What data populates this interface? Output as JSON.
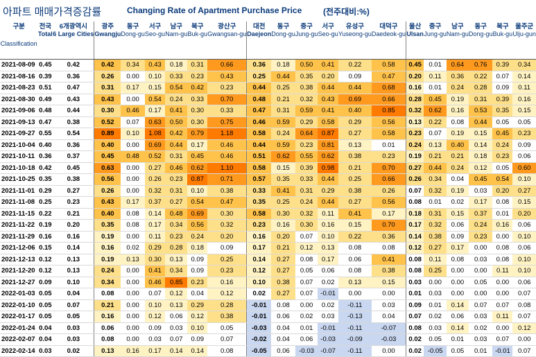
{
  "title_korean": "아파트 매매가격증감률",
  "title_english": "Changing Rate of Apartment Purchase Price",
  "unit_note": "(전주대비:%)",
  "colors": {
    "title": "#0b3a7a",
    "heat_1": "#fff3c4",
    "heat_2": "#ffe08a",
    "heat_3": "#ffc24a",
    "heat_4": "#ff9a1f",
    "heat_5": "#ff7a00",
    "negative": "#c9d7f0"
  },
  "columns": [
    {
      "ko": "구분",
      "en": "Classification"
    },
    {
      "ko": "전국",
      "en": "Total"
    },
    {
      "ko": "6개광역시",
      "en": "6 Large Cities"
    },
    {
      "ko": "광주",
      "en": "Gwangju"
    },
    {
      "ko": "동구",
      "en": "Dong-gu"
    },
    {
      "ko": "서구",
      "en": "Seo-gu"
    },
    {
      "ko": "남구",
      "en": "Nam-gu"
    },
    {
      "ko": "북구",
      "en": "Buk-gu"
    },
    {
      "ko": "광산구",
      "en": "Gwangsan-gu"
    },
    {
      "ko": "대전",
      "en": "Daejeon"
    },
    {
      "ko": "동구",
      "en": "Dong-gu"
    },
    {
      "ko": "중구",
      "en": "Jung-gu"
    },
    {
      "ko": "서구",
      "en": "Seo-gu"
    },
    {
      "ko": "유성구",
      "en": "Yuseong-gu"
    },
    {
      "ko": "대덕구",
      "en": "Daedeok-gu"
    },
    {
      "ko": "울산",
      "en": "Ulsan"
    },
    {
      "ko": "중구",
      "en": "Jung-gu"
    },
    {
      "ko": "남구",
      "en": "Nam-gu"
    },
    {
      "ko": "동구",
      "en": "Dong-gu"
    },
    {
      "ko": "북구",
      "en": "Buk-gu"
    },
    {
      "ko": "울주군",
      "en": "Ulju-gun"
    }
  ],
  "rows": [
    {
      "date": "2021-08-09",
      "values": [
        "0.45",
        "0.42",
        "0.42",
        "0.34",
        "0.43",
        "0.18",
        "0.31",
        "0.66",
        "0.36",
        "0.18",
        "0.50",
        "0.41",
        "0.22",
        "0.58",
        "0.45",
        "0.01",
        "0.64",
        "0.76",
        "0.39",
        "0.34"
      ]
    },
    {
      "date": "2021-08-16",
      "values": [
        "0.39",
        "0.36",
        "0.26",
        "0.00",
        "0.10",
        "0.33",
        "0.23",
        "0.43",
        "0.25",
        "0.44",
        "0.35",
        "0.20",
        "0.09",
        "0.47",
        "0.20",
        "0.11",
        "0.36",
        "0.22",
        "0.07",
        "0.14"
      ]
    },
    {
      "date": "2021-08-23",
      "values": [
        "0.51",
        "0.47",
        "0.31",
        "0.17",
        "0.15",
        "0.54",
        "0.42",
        "0.23",
        "0.44",
        "0.25",
        "0.38",
        "0.44",
        "0.44",
        "0.68",
        "0.16",
        "0.01",
        "0.24",
        "0.28",
        "0.09",
        "0.11"
      ]
    },
    {
      "date": "2021-08-30",
      "values": [
        "0.49",
        "0.43",
        "0.43",
        "0.00",
        "0.54",
        "0.24",
        "0.33",
        "0.70",
        "0.48",
        "0.21",
        "0.32",
        "0.43",
        "0.69",
        "0.66",
        "0.28",
        "0.45",
        "0.19",
        "0.31",
        "0.39",
        "0.16"
      ]
    },
    {
      "date": "2021-09-06",
      "values": [
        "0.48",
        "0.44",
        "0.30",
        "0.46",
        "0.17",
        "0.41",
        "0.30",
        "0.33",
        "0.47",
        "0.31",
        "0.59",
        "0.41",
        "0.40",
        "0.85",
        "0.32",
        "0.62",
        "0.16",
        "0.53",
        "0.35",
        "0.15"
      ]
    },
    {
      "date": "2021-09-13",
      "values": [
        "0.47",
        "0.38",
        "0.52",
        "0.07",
        "0.63",
        "0.50",
        "0.30",
        "0.75",
        "0.46",
        "0.59",
        "0.29",
        "0.58",
        "0.29",
        "0.56",
        "0.13",
        "0.22",
        "0.08",
        "0.44",
        "0.05",
        "0.05"
      ]
    },
    {
      "date": "2021-09-27",
      "values": [
        "0.55",
        "0.54",
        "0.89",
        "0.10",
        "1.08",
        "0.42",
        "0.79",
        "1.18",
        "0.58",
        "0.24",
        "0.64",
        "0.87",
        "0.27",
        "0.58",
        "0.23",
        "0.07",
        "0.19",
        "0.15",
        "0.45",
        "0.23"
      ]
    },
    {
      "date": "2021-10-04",
      "values": [
        "0.40",
        "0.36",
        "0.40",
        "0.00",
        "0.69",
        "0.44",
        "0.17",
        "0.46",
        "0.44",
        "0.59",
        "0.23",
        "0.81",
        "0.13",
        "0.01",
        "0.24",
        "0.13",
        "0.40",
        "0.14",
        "0.24",
        "0.09"
      ]
    },
    {
      "date": "2021-10-11",
      "values": [
        "0.36",
        "0.37",
        "0.45",
        "0.48",
        "0.52",
        "0.31",
        "0.45",
        "0.46",
        "0.51",
        "0.62",
        "0.55",
        "0.62",
        "0.38",
        "0.23",
        "0.19",
        "0.21",
        "0.21",
        "0.18",
        "0.23",
        "0.06"
      ]
    },
    {
      "date": "2021-10-18",
      "values": [
        "0.42",
        "0.45",
        "0.63",
        "0.00",
        "0.27",
        "0.46",
        "0.62",
        "1.10",
        "0.58",
        "0.15",
        "0.39",
        "0.98",
        "0.21",
        "0.70",
        "0.27",
        "0.44",
        "0.24",
        "0.12",
        "0.05",
        "0.60"
      ]
    },
    {
      "date": "2021-10-25",
      "values": [
        "0.35",
        "0.38",
        "0.56",
        "0.00",
        "0.26",
        "0.23",
        "0.87",
        "0.71",
        "0.57",
        "0.35",
        "0.33",
        "0.44",
        "0.25",
        "0.66",
        "0.26",
        "0.34",
        "0.04",
        "0.45",
        "0.54",
        "0.10"
      ]
    },
    {
      "date": "2021-11-01",
      "values": [
        "0.29",
        "0.27",
        "0.26",
        "0.00",
        "0.32",
        "0.31",
        "0.10",
        "0.38",
        "0.33",
        "0.41",
        "0.31",
        "0.29",
        "0.38",
        "0.26",
        "0.07",
        "0.32",
        "0.19",
        "0.03",
        "0.20",
        "0.27"
      ]
    },
    {
      "date": "2021-11-08",
      "values": [
        "0.25",
        "0.23",
        "0.43",
        "0.17",
        "0.37",
        "0.27",
        "0.54",
        "0.47",
        "0.35",
        "0.25",
        "0.24",
        "0.44",
        "0.27",
        "0.56",
        "0.08",
        "0.01",
        "0.02",
        "0.17",
        "0.08",
        "0.15"
      ]
    },
    {
      "date": "2021-11-15",
      "values": [
        "0.22",
        "0.21",
        "0.40",
        "0.08",
        "0.14",
        "0.48",
        "0.69",
        "0.30",
        "0.58",
        "0.30",
        "0.32",
        "0.11",
        "0.41",
        "0.17",
        "0.18",
        "0.31",
        "0.15",
        "0.37",
        "0.01",
        "0.20"
      ]
    },
    {
      "date": "2021-11-22",
      "values": [
        "0.19",
        "0.20",
        "0.35",
        "0.08",
        "0.17",
        "0.34",
        "0.56",
        "0.32",
        "0.23",
        "0.16",
        "0.30",
        "0.16",
        "0.15",
        "0.70",
        "0.17",
        "0.32",
        "0.06",
        "0.24",
        "0.16",
        "0.06"
      ]
    },
    {
      "date": "2021-11-29",
      "values": [
        "0.16",
        "0.16",
        "0.19",
        "0.00",
        "0.11",
        "0.23",
        "0.24",
        "0.20",
        "0.16",
        "0.20",
        "0.07",
        "0.10",
        "0.22",
        "0.36",
        "0.14",
        "0.38",
        "0.09",
        "0.23",
        "0.00",
        "0.10"
      ]
    },
    {
      "date": "2021-12-06",
      "values": [
        "0.15",
        "0.14",
        "0.16",
        "0.02",
        "0.29",
        "0.28",
        "0.18",
        "0.09",
        "0.17",
        "0.21",
        "0.12",
        "0.13",
        "0.08",
        "0.08",
        "0.12",
        "0.27",
        "0.17",
        "0.00",
        "0.08",
        "0.06"
      ]
    },
    {
      "date": "2021-12-13",
      "values": [
        "0.12",
        "0.13",
        "0.19",
        "0.13",
        "0.30",
        "0.13",
        "0.09",
        "0.25",
        "0.14",
        "0.27",
        "0.08",
        "0.17",
        "0.06",
        "0.41",
        "0.08",
        "0.11",
        "0.08",
        "0.03",
        "0.08",
        "0.10"
      ]
    },
    {
      "date": "2021-12-20",
      "values": [
        "0.12",
        "0.13",
        "0.24",
        "0.00",
        "0.41",
        "0.34",
        "0.09",
        "0.23",
        "0.12",
        "0.27",
        "0.05",
        "0.06",
        "0.08",
        "0.38",
        "0.08",
        "0.25",
        "0.00",
        "0.00",
        "0.11",
        "0.10"
      ]
    },
    {
      "date": "2021-12-27",
      "values": [
        "0.09",
        "0.10",
        "0.34",
        "0.00",
        "0.46",
        "0.85",
        "0.23",
        "0.16",
        "0.10",
        "0.38",
        "0.07",
        "0.02",
        "0.13",
        "0.15",
        "0.03",
        "0.00",
        "0.00",
        "0.05",
        "0.00",
        "0.06"
      ]
    },
    {
      "date": "2022-01-03",
      "values": [
        "0.05",
        "0.04",
        "0.08",
        "0.00",
        "0.07",
        "0.12",
        "0.04",
        "0.12",
        "0.02",
        "0.27",
        "0.07",
        "-0.01",
        "0.00",
        "0.00",
        "0.01",
        "0.03",
        "0.00",
        "0.00",
        "0.00",
        "0.07"
      ]
    },
    {
      "date": "2022-01-10",
      "values": [
        "0.05",
        "0.07",
        "0.21",
        "0.00",
        "0.10",
        "0.13",
        "0.29",
        "0.28",
        "-0.01",
        "0.08",
        "0.00",
        "0.02",
        "-0.11",
        "0.03",
        "0.09",
        "0.01",
        "0.14",
        "0.07",
        "0.07",
        "0.08"
      ]
    },
    {
      "date": "2022-01-17",
      "values": [
        "0.05",
        "0.05",
        "0.16",
        "0.00",
        "0.12",
        "0.06",
        "0.12",
        "0.38",
        "-0.01",
        "0.06",
        "0.02",
        "0.03",
        "-0.13",
        "0.04",
        "0.07",
        "0.02",
        "0.06",
        "0.03",
        "0.11",
        "0.07"
      ]
    },
    {
      "date": "2022-01-24",
      "values": [
        "0.04",
        "0.03",
        "0.06",
        "0.00",
        "0.09",
        "0.03",
        "0.10",
        "0.05",
        "-0.03",
        "0.04",
        "0.01",
        "-0.01",
        "-0.11",
        "-0.07",
        "0.08",
        "0.03",
        "0.14",
        "0.02",
        "0.00",
        "0.12"
      ]
    },
    {
      "date": "2022-02-07",
      "values": [
        "0.04",
        "0.03",
        "0.08",
        "0.00",
        "0.03",
        "0.07",
        "0.09",
        "0.07",
        "-0.02",
        "0.04",
        "0.06",
        "-0.03",
        "-0.09",
        "-0.03",
        "0.02",
        "0.05",
        "0.01",
        "0.03",
        "0.07",
        "0.00"
      ]
    },
    {
      "date": "2022-02-14",
      "values": [
        "0.03",
        "0.02",
        "0.13",
        "0.16",
        "0.17",
        "0.14",
        "0.14",
        "0.08",
        "-0.05",
        "0.06",
        "-0.03",
        "-0.07",
        "-0.11",
        "0.00",
        "0.02",
        "-0.05",
        "0.05",
        "0.01",
        "-0.01",
        "0.07"
      ]
    }
  ]
}
